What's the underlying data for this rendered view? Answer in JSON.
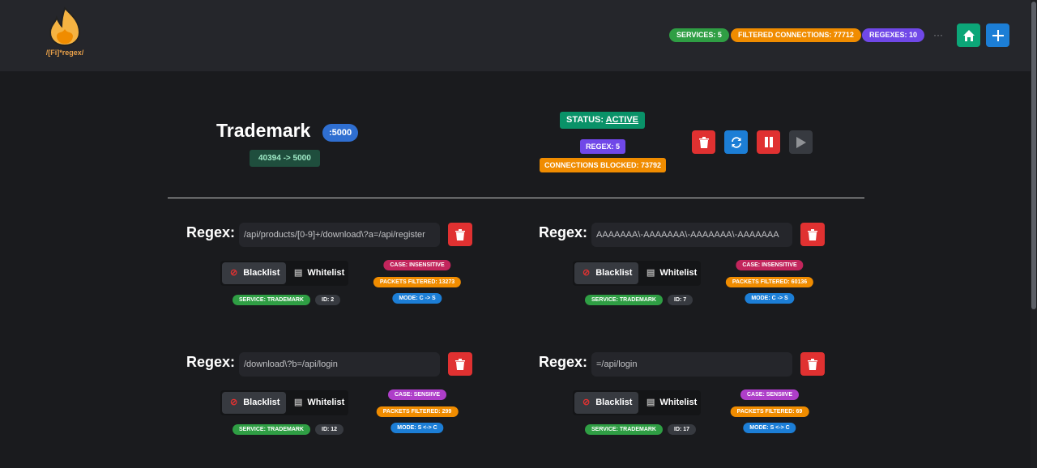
{
  "header": {
    "logo_text": "/[Fi]*regex/",
    "badges": [
      {
        "label": "SERVICES: 5",
        "color": "#2f9e44"
      },
      {
        "label": "FILTERED CONNECTIONS: 77712",
        "color": "#f08c00"
      },
      {
        "label": "REGEXES: 10",
        "color": "#7048e8"
      }
    ],
    "more": "···",
    "home_icon": "home-icon",
    "add_icon": "plus-icon"
  },
  "service": {
    "name": "Trademark",
    "port": ":5000",
    "mapping": "40394 -> 5000",
    "status_label": "STATUS: ",
    "status_value": "ACTIVE",
    "regex_count": "REGEX: 5",
    "blocked": "CONNECTIONS BLOCKED: 73792"
  },
  "regex_label": "Regex:",
  "blacklist": "Blacklist",
  "whitelist": "Whitelist",
  "regexes": [
    {
      "pattern": "/api/products/[0-9]+/download\\?a=/api/register",
      "case": "CASE: INSENSITIVE",
      "packets": "PACKETS FILTERED: 13273",
      "mode": "MODE: C -> S",
      "service": "SERVICE: TRADEMARK",
      "id": "ID: 2"
    },
    {
      "pattern": "AAAAAAA\\-AAAAAAA\\-AAAAAAA\\-AAAAAAA",
      "case": "CASE: INSENSITIVE",
      "packets": "PACKETS FILTERED: 60136",
      "mode": "MODE: C -> S",
      "service": "SERVICE: TRADEMARK",
      "id": "ID: 7"
    },
    {
      "pattern": "/download\\?b=/api/login",
      "case": "CASE: SENSIIVE",
      "packets": "PACKETS FILTERED: 299",
      "mode": "MODE: S <-> C",
      "service": "SERVICE: TRADEMARK",
      "id": "ID: 12"
    },
    {
      "pattern": "=/api/login",
      "case": "CASE: SENSIIVE",
      "packets": "PACKETS FILTERED: 69",
      "mode": "MODE: S <-> C",
      "service": "SERVICE: TRADEMARK",
      "id": "ID: 17"
    }
  ]
}
